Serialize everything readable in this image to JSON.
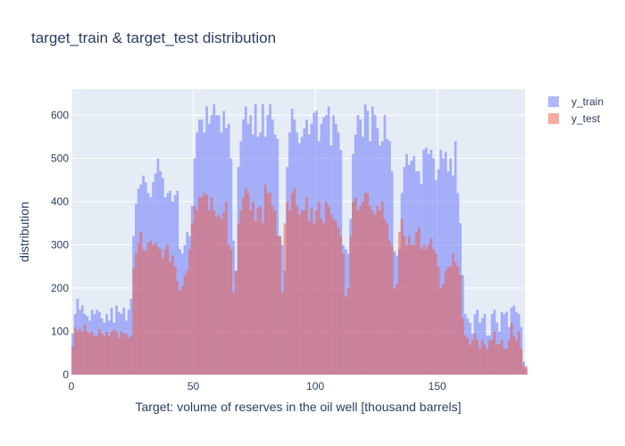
{
  "chart_data": {
    "type": "bar",
    "title": "target_train & target_test distribution",
    "xlabel": "Target: volume of reserves in the oil well [thousand barrels]",
    "ylabel": "distribution",
    "xlim": [
      0,
      186
    ],
    "ylim": [
      0,
      660
    ],
    "x_ticks": [
      0,
      50,
      100,
      150
    ],
    "y_ticks": [
      0,
      100,
      200,
      300,
      400,
      500,
      600
    ],
    "bin_width": 1,
    "grid": true,
    "barmode": "overlay",
    "legend_position": "top-right",
    "colors": {
      "plot_bg": "#E5ECF6",
      "y_train": "#636EFA",
      "y_test": "#EF553B",
      "text": "#2a3f5f"
    },
    "series": [
      {
        "name": "y_train",
        "x_start": 0,
        "values": [
          95,
          140,
          175,
          150,
          160,
          140,
          135,
          125,
          150,
          140,
          150,
          145,
          130,
          120,
          140,
          125,
          155,
          120,
          160,
          145,
          140,
          155,
          125,
          150,
          175,
          320,
          395,
          430,
          440,
          460,
          445,
          420,
          410,
          445,
          465,
          500,
          470,
          455,
          410,
          420,
          425,
          400,
          415,
          425,
          290,
          280,
          300,
          330,
          320,
          390,
          500,
          560,
          590,
          590,
          560,
          620,
          580,
          600,
          625,
          600,
          600,
          560,
          610,
          570,
          580,
          500,
          310,
          240,
          480,
          540,
          590,
          620,
          580,
          600,
          555,
          625,
          550,
          560,
          625,
          550,
          600,
          625,
          590,
          555,
          545,
          320,
          300,
          240,
          480,
          560,
          615,
          590,
          560,
          535,
          550,
          570,
          590,
          555,
          580,
          605,
          610,
          540,
          580,
          595,
          600,
          620,
          530,
          600,
          580,
          560,
          520,
          300,
          290,
          280,
          360,
          510,
          555,
          600,
          590,
          550,
          625,
          610,
          540,
          620,
          600,
          570,
          530,
          540,
          600,
          545,
          540,
          470,
          285,
          275,
          290,
          420,
          480,
          510,
          485,
          495,
          505,
          470,
          470,
          440,
          520,
          525,
          510,
          520,
          500,
          450,
          475,
          520,
          500,
          515,
          470,
          500,
          460,
          540,
          420,
          350,
          230,
          140,
          130,
          120,
          95,
          140,
          150,
          120,
          130,
          140,
          90,
          90,
          140,
          150,
          120,
          100,
          145,
          140,
          145,
          110,
          155,
          160,
          145,
          140,
          110,
          30,
          15
        ]
      },
      {
        "name": "y_test",
        "x_start": 0,
        "values": [
          65,
          110,
          100,
          105,
          100,
          115,
          100,
          95,
          100,
          90,
          90,
          105,
          95,
          90,
          100,
          90,
          100,
          105,
          100,
          85,
          100,
          95,
          95,
          85,
          90,
          245,
          280,
          305,
          330,
          290,
          285,
          305,
          310,
          300,
          305,
          295,
          290,
          270,
          290,
          300,
          260,
          275,
          250,
          215,
          195,
          205,
          230,
          240,
          290,
          350,
          390,
          380,
          410,
          410,
          420,
          415,
          380,
          410,
          380,
          365,
          370,
          360,
          375,
          400,
          300,
          290,
          190,
          240,
          350,
          380,
          410,
          430,
          420,
          380,
          400,
          355,
          385,
          390,
          350,
          440,
          420,
          420,
          390,
          380,
          320,
          320,
          190,
          350,
          400,
          380,
          420,
          430,
          390,
          370,
          380,
          380,
          410,
          355,
          385,
          350,
          380,
          400,
          360,
          350,
          400,
          390,
          370,
          360,
          355,
          340,
          320,
          280,
          180,
          200,
          320,
          400,
          410,
          380,
          390,
          400,
          420,
          420,
          390,
          380,
          370,
          390,
          380,
          400,
          360,
          350,
          310,
          300,
          200,
          210,
          330,
          360,
          320,
          300,
          320,
          300,
          300,
          330,
          340,
          290,
          300,
          290,
          300,
          315,
          290,
          280,
          250,
          200,
          210,
          240,
          250,
          250,
          280,
          260,
          250,
          230,
          130,
          90,
          85,
          70,
          80,
          95,
          80,
          60,
          80,
          70,
          60,
          80,
          80,
          100,
          70,
          70,
          80,
          60,
          60,
          80,
          120,
          90,
          80,
          100,
          60,
          20,
          20
        ]
      }
    ]
  }
}
